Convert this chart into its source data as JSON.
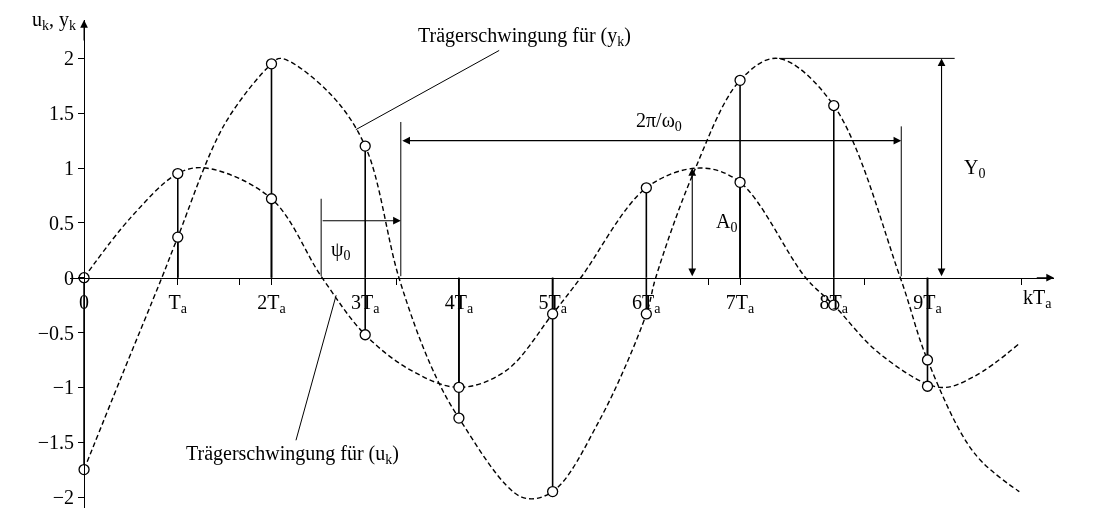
{
  "chart_data": {
    "type": "lollipop",
    "xlabel": "kT$_{a}$",
    "ylabel": "u$_{k}$, y$_{k}$",
    "x": [
      0,
      1,
      2,
      3,
      4,
      5,
      6,
      7,
      8,
      9
    ],
    "series": [
      {
        "type": "line",
        "color": "#000000",
        "marker": "none",
        "line_style": "dashed",
        "x": [
          0,
          0.5,
          1,
          1.3,
          2,
          2.54,
          3,
          3.5,
          4,
          4.5,
          5,
          5.3,
          6,
          6.57,
          7,
          7.7,
          8,
          8.5,
          9.13,
          9.5,
          9.98
        ],
        "values": [
          0,
          0.55,
          0.95,
          1,
          0.72,
          0,
          -0.52,
          -0.85,
          -1,
          -0.85,
          -0.33,
          0,
          0.82,
          1,
          0.87,
          0,
          -0.25,
          -0.7,
          -1,
          -0.9,
          -0.6
        ]
      },
      {
        "type": "line",
        "color": "#000000",
        "marker": "none",
        "line_style": "dashed",
        "x": [
          0,
          0.4,
          0.83,
          1,
          1.5,
          2,
          2.1,
          2.6,
          3,
          3.36,
          3.7,
          4,
          4.67,
          5,
          5.5,
          6,
          6.1,
          6.5,
          7,
          7.4,
          8,
          8.71,
          9,
          9.5,
          9.98
        ],
        "values": [
          -1.75,
          -0.9,
          0,
          0.37,
          1.4,
          1.95,
          2,
          1.7,
          1.2,
          0,
          -0.8,
          -1.28,
          -2,
          -1.95,
          -1.3,
          -0.33,
          0,
          0.95,
          1.8,
          2,
          1.57,
          0,
          -0.75,
          -1.6,
          -1.95
        ]
      },
      {
        "color": "#000000",
        "marker": "circle",
        "values": [
          0,
          0.95,
          0.72,
          -0.52,
          -1.0,
          -0.33,
          0.82,
          0.87,
          -0.25,
          -0.99
        ]
      },
      {
        "color": "#000000",
        "marker": "circle",
        "values": [
          -1.75,
          0.37,
          1.95,
          1.2,
          -1.28,
          -1.95,
          -0.33,
          1.8,
          1.57,
          -0.75
        ]
      }
    ],
    "xlim": [
      -0.15,
      10.35
    ],
    "ylim": [
      -2.1,
      2.35
    ],
    "xticks": [
      {
        "value": 0,
        "label": "0"
      },
      {
        "value": 1,
        "label": "T$_{a}$"
      },
      {
        "value": 2,
        "label": "2T$_{a}$"
      },
      {
        "value": 3,
        "label": "3T$_{a}$"
      },
      {
        "value": 4,
        "label": "4T$_{a}$"
      },
      {
        "value": 5,
        "label": "5T$_{a}$"
      },
      {
        "value": 6,
        "label": "6T$_{a}$"
      },
      {
        "value": 7,
        "label": "7T$_{a}$"
      },
      {
        "value": 8,
        "label": "8T$_{a}$"
      },
      {
        "value": 9,
        "label": "9T$_{a}$"
      },
      {
        "value": 1.66,
        "label": null
      },
      {
        "value": 3.33,
        "label": null
      },
      {
        "value": 6.66,
        "label": null
      },
      {
        "value": 8.33,
        "label": null
      },
      {
        "value": 10,
        "label": null
      }
    ],
    "yticks": [
      {
        "value": -2,
        "label": "−2"
      },
      {
        "value": -1.5,
        "label": "−1.5"
      },
      {
        "value": -1,
        "label": "−1"
      },
      {
        "value": -0.5,
        "label": "−0.5"
      },
      0,
      0.5,
      1,
      1.5,
      2
    ],
    "annotations": [
      {
        "text": "Trägerschwingung für (y$_{k}$)",
        "x": 2.9,
        "y": 1.35
      },
      {
        "text": "Trägerschwingung für (u$_{k}$)",
        "x": 2.69,
        "y": -0.16
      },
      "ψ$_{0}$",
      "2π/ω$_{0}$",
      "A$_{0}$",
      "Y$_{0}$"
    ],
    "grid": false
  }
}
